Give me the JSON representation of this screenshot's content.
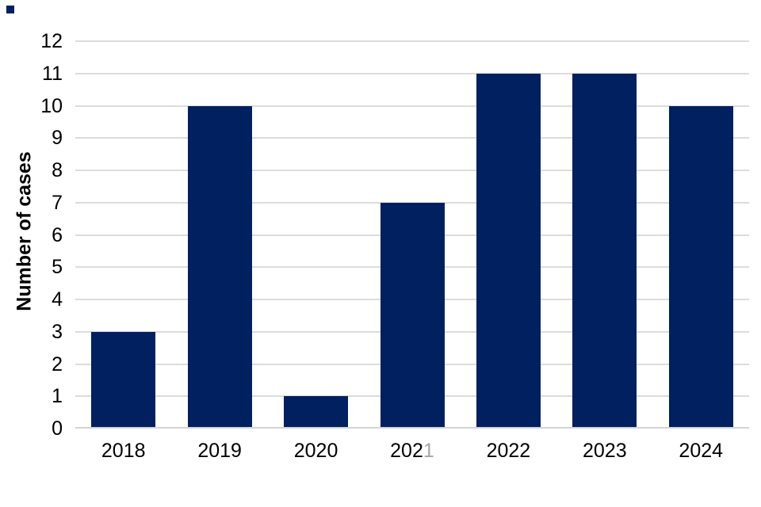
{
  "chart_data": {
    "type": "bar",
    "title": "",
    "categories": [
      "2018",
      "2019",
      "2020",
      "2021",
      "2022",
      "2023",
      "2024"
    ],
    "values": [
      3,
      10,
      1,
      7,
      11,
      11,
      10
    ],
    "series": [
      {
        "name": "Number of cases",
        "values": [
          3,
          10,
          1,
          7,
          11,
          11,
          10
        ]
      }
    ],
    "xlabel": "",
    "ylabel": "Number of cases",
    "ylim": [
      0,
      12
    ],
    "yticks": [
      0,
      1,
      2,
      3,
      4,
      5,
      6,
      7,
      8,
      9,
      10,
      11,
      12
    ],
    "grid": "horizontal",
    "legend": "none",
    "bar_color": "#002060",
    "gridline_color": "#dcdcdc",
    "baseline_color": "#d4d4d4",
    "label_color": "#000000",
    "x_label_overrides": {
      "2021": {
        "main": "202",
        "faded_suffix": "1",
        "faded_color": "#a6a6a6"
      }
    }
  },
  "decor": {
    "corner_square": {
      "color": "#002060"
    }
  }
}
